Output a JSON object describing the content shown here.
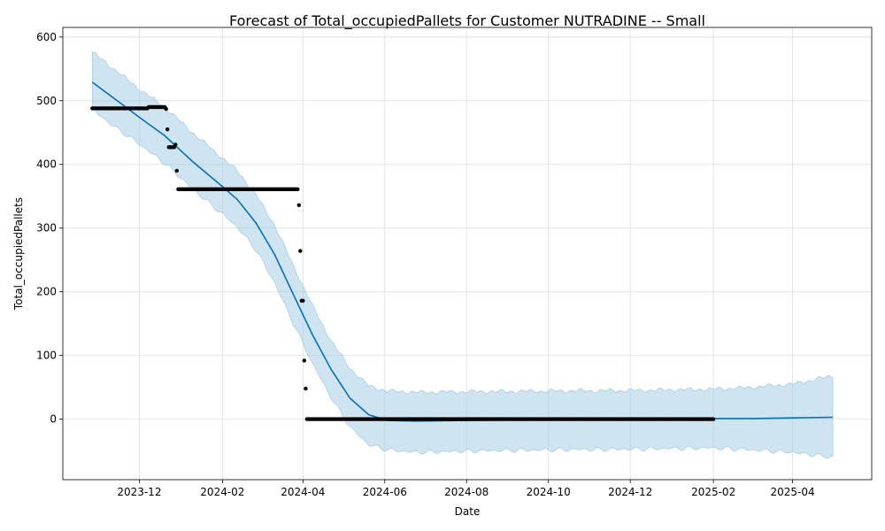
{
  "chart_data": {
    "type": "line",
    "title": "Forecast of Total_occupiedPallets for Customer NUTRADINE -- Small",
    "xlabel": "Date",
    "ylabel": "Total_occupiedPallets",
    "x_axis": "date",
    "xlim": [
      "2023-10-05",
      "2025-05-30"
    ],
    "ylim": [
      -95,
      615
    ],
    "grid": true,
    "x_ticks": [
      "2023-12-01",
      "2024-02-01",
      "2024-04-01",
      "2024-06-01",
      "2024-08-01",
      "2024-10-01",
      "2024-12-01",
      "2025-02-01",
      "2025-04-01"
    ],
    "x_tick_labels": [
      "2023-12",
      "2024-02",
      "2024-04",
      "2024-06",
      "2024-08",
      "2024-10",
      "2024-12",
      "2025-02",
      "2025-04"
    ],
    "y_ticks": [
      0,
      100,
      200,
      300,
      400,
      500,
      600
    ],
    "y_tick_labels": [
      "0",
      "100",
      "200",
      "300",
      "400",
      "500",
      "600"
    ],
    "colors": {
      "forecast_line": "#0072b2",
      "uncertainty_band": "#a6cde5",
      "observed_points": "#000000"
    },
    "forecast": {
      "x": [
        "2023-10-27",
        "2023-11-12",
        "2023-12-01",
        "2023-12-20",
        "2024-01-10",
        "2024-02-01",
        "2024-02-12",
        "2024-02-26",
        "2024-03-11",
        "2024-03-25",
        "2024-04-08",
        "2024-04-22",
        "2024-05-06",
        "2024-05-20",
        "2024-06-03",
        "2024-06-24",
        "2024-08-01",
        "2024-10-01",
        "2024-12-01",
        "2025-02-01",
        "2025-03-01",
        "2025-04-01",
        "2025-05-01"
      ],
      "yhat": [
        529,
        504,
        474,
        445,
        404,
        365,
        345,
        308,
        258,
        195,
        133,
        78,
        33,
        7,
        -2,
        -3,
        -2,
        -1,
        0,
        1,
        1,
        2,
        3
      ],
      "lower": [
        486,
        460,
        432,
        402,
        361,
        322,
        302,
        266,
        214,
        150,
        88,
        34,
        -12,
        -40,
        -48,
        -52,
        -50,
        -48,
        -47,
        -45,
        -48,
        -52,
        -60
      ],
      "upper": [
        576,
        550,
        518,
        490,
        449,
        410,
        390,
        352,
        304,
        240,
        178,
        123,
        80,
        52,
        44,
        42,
        43,
        44,
        45,
        47,
        50,
        55,
        68
      ]
    },
    "observed": [
      {
        "start": "2023-10-27",
        "end": "2023-12-07",
        "y": 488
      },
      {
        "start": "2023-12-08",
        "end": "2023-12-20",
        "y": 490
      },
      {
        "start": "2023-12-21",
        "end": "2023-12-21",
        "y": 487
      },
      {
        "start": "2023-12-22",
        "end": "2023-12-22",
        "y": 455
      },
      {
        "start": "2023-12-23",
        "end": "2023-12-27",
        "y": 427
      },
      {
        "start": "2023-12-28",
        "end": "2023-12-28",
        "y": 431
      },
      {
        "start": "2023-12-29",
        "end": "2023-12-29",
        "y": 390
      },
      {
        "start": "2023-12-30",
        "end": "2024-03-28",
        "y": 361
      },
      {
        "start": "2024-03-29",
        "end": "2024-03-29",
        "y": 336
      },
      {
        "start": "2024-03-30",
        "end": "2024-03-30",
        "y": 264
      },
      {
        "start": "2024-03-31",
        "end": "2024-04-01",
        "y": 186
      },
      {
        "start": "2024-04-02",
        "end": "2024-04-02",
        "y": 92
      },
      {
        "start": "2024-04-03",
        "end": "2024-04-03",
        "y": 48
      },
      {
        "start": "2024-04-04",
        "end": "2025-02-01",
        "y": 0
      }
    ]
  }
}
